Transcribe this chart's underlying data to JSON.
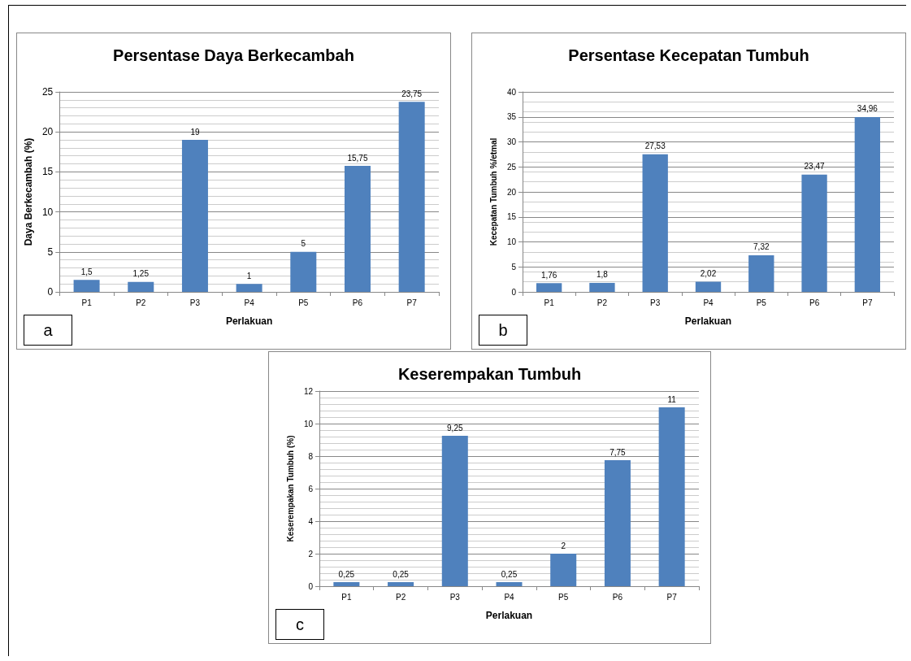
{
  "chart_data": [
    {
      "type": "bar",
      "title": "Persentase Daya Berkecambah",
      "xlabel": "Perlakuan",
      "ylabel": "Daya Berkecambah (%)",
      "categories": [
        "P1",
        "P2",
        "P3",
        "P4",
        "P5",
        "P6",
        "P7"
      ],
      "values": [
        1.5,
        1.25,
        19,
        1,
        5,
        15.75,
        23.75
      ],
      "value_labels": [
        "1,5",
        "1,25",
        "19",
        "1",
        "5",
        "15,75",
        "23,75"
      ],
      "color": "#4f81bd",
      "ylim": [
        0,
        25
      ],
      "yticks": [
        0,
        5,
        10,
        15,
        20,
        25
      ],
      "grid": "y",
      "annotations": [
        "a"
      ]
    },
    {
      "type": "bar",
      "title": "Persentase Kecepatan Tumbuh",
      "xlabel": "Perlakuan",
      "ylabel": "Kecepatan Tumbuh %/etmal",
      "categories": [
        "P1",
        "P2",
        "P3",
        "P4",
        "P5",
        "P6",
        "P7"
      ],
      "values": [
        1.76,
        1.8,
        27.53,
        2.02,
        7.32,
        23.47,
        34.96
      ],
      "value_labels": [
        "1,76",
        "1,8",
        "27,53",
        "2,02",
        "7,32",
        "23,47",
        "34,96"
      ],
      "color": "#4f81bd",
      "ylim": [
        0,
        40
      ],
      "yticks": [
        0,
        5,
        10,
        15,
        20,
        25,
        30,
        35,
        40
      ],
      "grid": "y",
      "annotations": [
        "b"
      ]
    },
    {
      "type": "bar",
      "title": "Keserempakan Tumbuh",
      "xlabel": "Perlakuan",
      "ylabel": "Keserempakan Tumbuh (%)",
      "categories": [
        "P1",
        "P2",
        "P3",
        "P4",
        "P5",
        "P6",
        "P7"
      ],
      "values": [
        0.25,
        0.25,
        9.25,
        0.25,
        2,
        7.75,
        11
      ],
      "value_labels": [
        "0,25",
        "0,25",
        "9,25",
        "0,25",
        "2",
        "7,75",
        "11"
      ],
      "color": "#4f81bd",
      "ylim": [
        0,
        12
      ],
      "yticks": [
        0,
        2,
        4,
        6,
        8,
        10,
        12
      ],
      "grid": "y",
      "annotations": [
        "c"
      ]
    }
  ]
}
